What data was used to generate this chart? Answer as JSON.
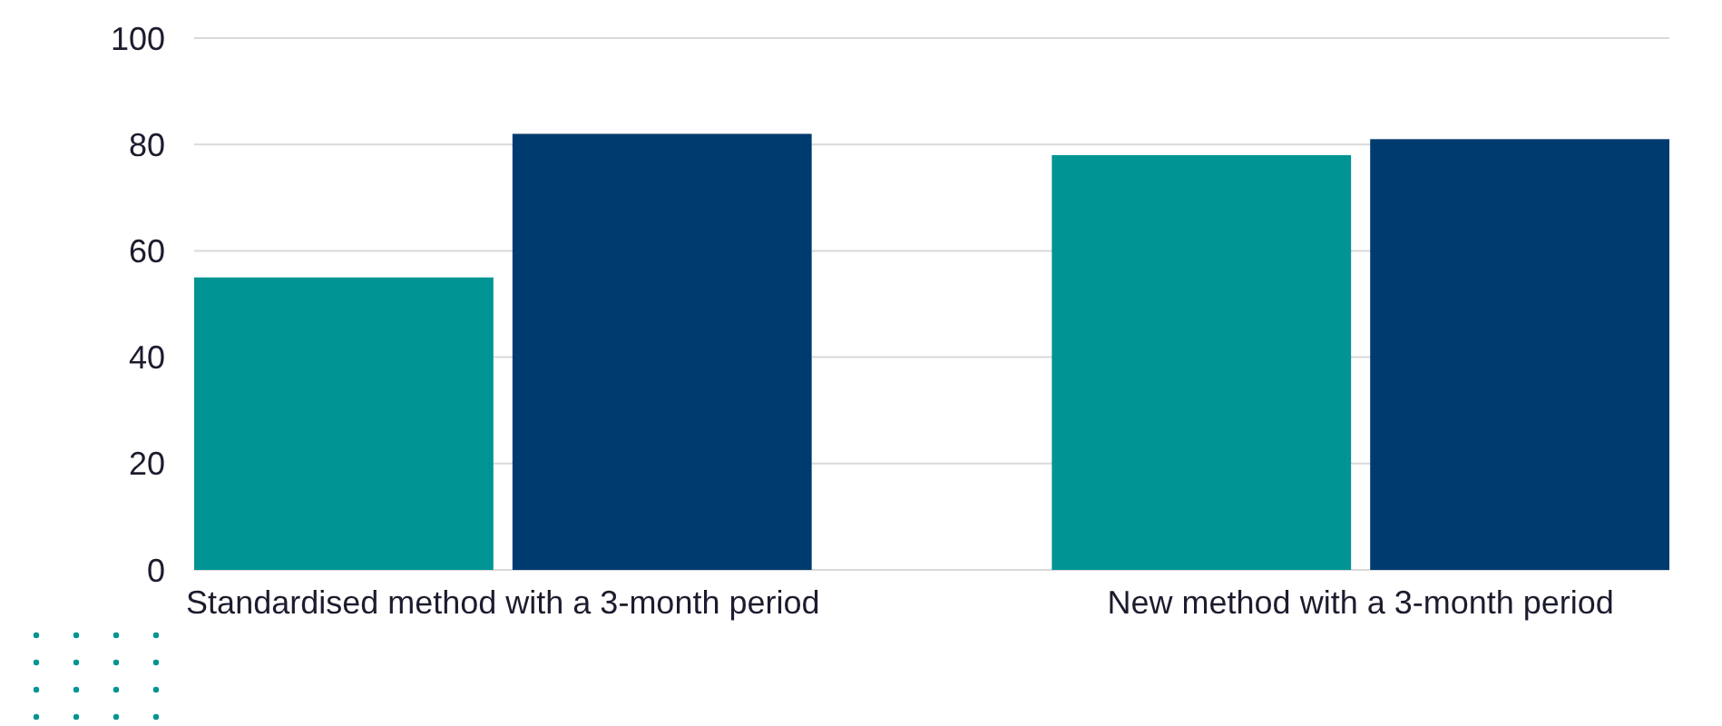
{
  "chart_data": {
    "type": "bar",
    "categories": [
      "Standardised method with a 3-month period",
      "New method with a 3-month period"
    ],
    "series": [
      {
        "color": "#009494",
        "values": [
          55,
          78
        ]
      },
      {
        "color": "#003b6f",
        "values": [
          82,
          81
        ]
      }
    ],
    "ylim": [
      0,
      100
    ],
    "yticks": [
      0,
      20,
      40,
      60,
      80,
      100
    ],
    "grid": "y"
  }
}
